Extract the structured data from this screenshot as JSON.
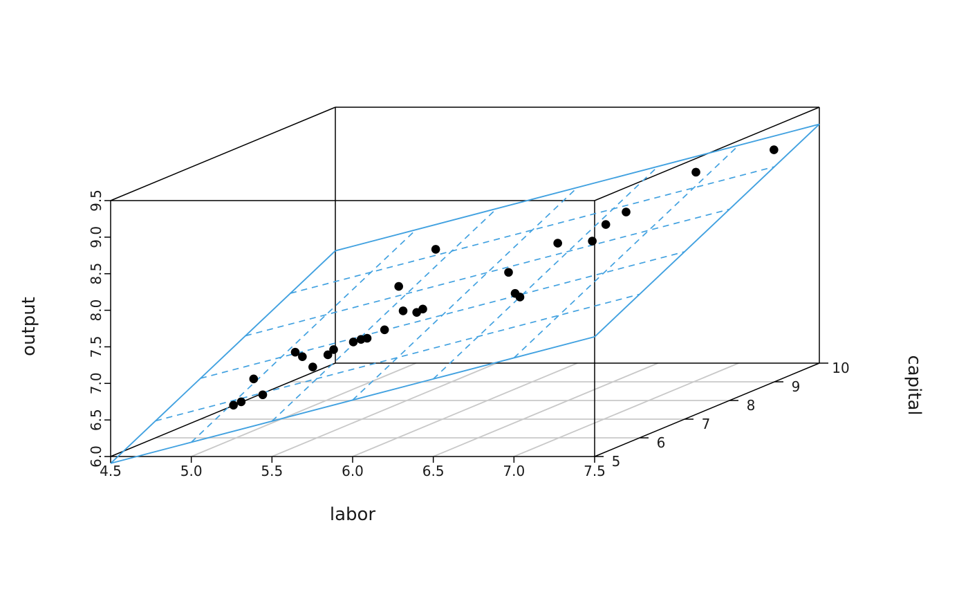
{
  "chart_data": {
    "type": "scatter",
    "subtype": "scatter3d-with-regression-plane",
    "title": "",
    "axes": {
      "x": {
        "label": "labor",
        "min": 4.5,
        "max": 7.5,
        "tick_values": [
          4.5,
          5.0,
          5.5,
          6.0,
          6.5,
          7.0,
          7.5
        ],
        "tick_labels": [
          "4.5",
          "5.0",
          "5.5",
          "6.0",
          "6.5",
          "7.0",
          "7.5"
        ]
      },
      "y": {
        "label": "capital",
        "min": 5,
        "max": 10,
        "tick_values": [
          5,
          6,
          7,
          8,
          9,
          10
        ],
        "tick_labels": [
          "5",
          "6",
          "7",
          "8",
          "9",
          "10"
        ]
      },
      "z": {
        "label": "output",
        "min": 6.0,
        "max": 9.5,
        "tick_values": [
          6.0,
          6.5,
          7.0,
          7.5,
          8.0,
          8.5,
          9.0,
          9.5
        ],
        "tick_labels": [
          "6.0",
          "6.5",
          "7.0",
          "7.5",
          "8.0",
          "8.5",
          "9.0",
          "9.5"
        ]
      }
    },
    "points": [
      {
        "labor": 5.15,
        "capital": 5.4,
        "output": 6.6
      },
      {
        "labor": 5.17,
        "capital": 5.5,
        "output": 6.62
      },
      {
        "labor": 5.08,
        "capital": 6.1,
        "output": 6.78
      },
      {
        "labor": 5.22,
        "capital": 5.8,
        "output": 6.64
      },
      {
        "labor": 5.31,
        "capital": 6.2,
        "output": 7.12
      },
      {
        "labor": 5.41,
        "capital": 6.0,
        "output": 7.11
      },
      {
        "labor": 5.53,
        "capital": 5.8,
        "output": 7.02
      },
      {
        "labor": 5.54,
        "capital": 6.1,
        "output": 7.11
      },
      {
        "labor": 5.52,
        "capital": 6.3,
        "output": 7.13
      },
      {
        "labor": 5.67,
        "capital": 6.2,
        "output": 7.26
      },
      {
        "labor": 5.69,
        "capital": 6.3,
        "output": 7.27
      },
      {
        "labor": 5.7,
        "capital": 6.4,
        "output": 7.26
      },
      {
        "labor": 5.78,
        "capital": 6.5,
        "output": 7.35
      },
      {
        "labor": 5.45,
        "capital": 8.0,
        "output": 7.56
      },
      {
        "labor": 5.7,
        "capital": 7.2,
        "output": 7.43
      },
      {
        "labor": 5.84,
        "capital": 7.0,
        "output": 7.46
      },
      {
        "labor": 5.85,
        "capital": 7.1,
        "output": 7.48
      },
      {
        "labor": 5.54,
        "capital": 8.5,
        "output": 7.94
      },
      {
        "labor": 6.27,
        "capital": 7.5,
        "output": 7.88
      },
      {
        "labor": 6.45,
        "capital": 7.0,
        "output": 7.72
      },
      {
        "labor": 6.48,
        "capital": 7.0,
        "output": 7.67
      },
      {
        "labor": 6.38,
        "capital": 8.2,
        "output": 8.1
      },
      {
        "labor": 6.65,
        "capital": 8.0,
        "output": 8.18
      },
      {
        "labor": 6.65,
        "capital": 8.3,
        "output": 8.33
      },
      {
        "labor": 6.72,
        "capital": 8.5,
        "output": 8.45
      },
      {
        "labor": 6.93,
        "capital": 9.3,
        "output": 8.79
      },
      {
        "labor": 7.33,
        "capital": 9.6,
        "output": 9.02
      }
    ],
    "regression_plane": {
      "intercept": 1.68,
      "labor_coef": 0.577,
      "capital_coef": 0.326,
      "grid_style": "dashed",
      "border_style": "solid"
    },
    "layout_hints": {
      "floor_grid": true,
      "box_wireframe": true,
      "z_tick_labels_rotated": true,
      "legend": "none"
    },
    "colors": {
      "points": "#000000",
      "plane": "#41a1e0",
      "box": "#000000",
      "floor_grid": "#c8c8c8",
      "background": "#ffffff",
      "text": "#1a1a1a"
    }
  }
}
